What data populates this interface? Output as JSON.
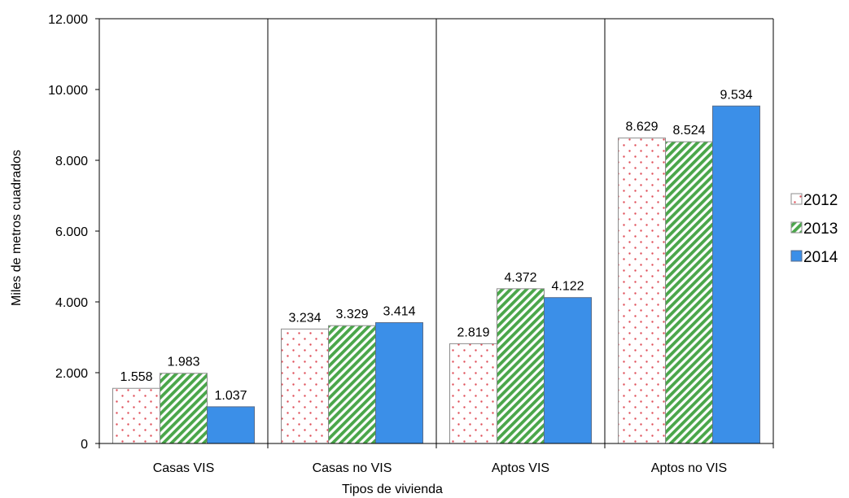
{
  "chart_data": {
    "type": "bar",
    "categories": [
      "Casas VIS",
      "Casas no VIS",
      "Aptos VIS",
      "Aptos no VIS"
    ],
    "series": [
      {
        "name": "2012",
        "values": [
          1558,
          3234,
          2819,
          8629
        ],
        "value_labels": [
          "1.558",
          "3.234",
          "2.819",
          "8.629"
        ]
      },
      {
        "name": "2013",
        "values": [
          1983,
          3329,
          4372,
          8524
        ],
        "value_labels": [
          "1.983",
          "3.329",
          "4.372",
          "8.524"
        ]
      },
      {
        "name": "2014",
        "values": [
          1037,
          3414,
          4122,
          9534
        ],
        "value_labels": [
          "1.037",
          "3.414",
          "4.122",
          "9.534"
        ]
      }
    ],
    "xlabel": "Tipos de vivienda",
    "ylabel": "Miles de metros cuadrados",
    "ylim": [
      0,
      12000
    ],
    "yticks": [
      0,
      2000,
      4000,
      6000,
      8000,
      10000,
      12000
    ],
    "ytick_labels": [
      "0",
      "2.000",
      "4.000",
      "6.000",
      "8.000",
      "10.000",
      "12.000"
    ],
    "legend_position": "right",
    "series_styles": [
      {
        "fill": "#ffffff",
        "pattern": "red-dots",
        "pattern_color": "#e0505a",
        "stroke": "#8c8c8c"
      },
      {
        "fill": "#ffffff",
        "pattern": "green-diagonal-stripes",
        "pattern_color": "#4aa64a",
        "stroke": "#8c8c8c"
      },
      {
        "fill": "#3b8fe8",
        "pattern": "solid",
        "pattern_color": "#3b8fe8",
        "stroke": "#5a6e8c"
      }
    ]
  }
}
